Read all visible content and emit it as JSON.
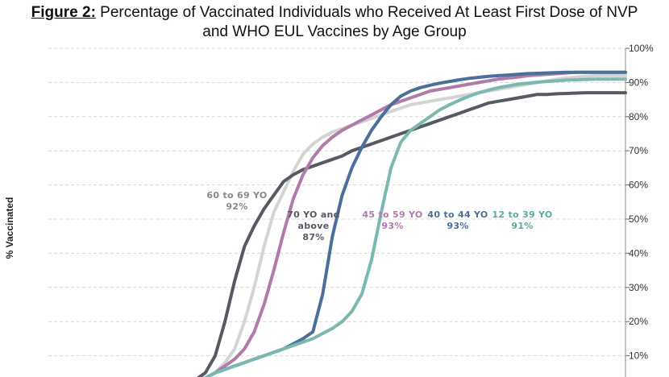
{
  "title_prefix": "Figure 2:",
  "title_line1": " Percentage of Vaccinated Individuals who Received At Least First Dose of NVP",
  "title_line2": "and WHO EUL Vaccines by Age Group",
  "chart_data": {
    "type": "line",
    "title": "Figure 2: Percentage of Vaccinated Individuals who Received At Least First Dose of NVP and WHO EUL Vaccines by Age Group",
    "ylabel": "% Vaccinated",
    "xlabel": "",
    "ylim": [
      0,
      100
    ],
    "yticks": [
      "10%",
      "20%",
      "30%",
      "40%",
      "50%",
      "60%",
      "70%",
      "80%",
      "90%",
      "100%"
    ],
    "ytick_values": [
      10,
      20,
      30,
      40,
      50,
      60,
      70,
      80,
      90,
      100
    ],
    "y_axis_side": "right",
    "grid": "horizontal dashed",
    "x": [
      0,
      2,
      4,
      6,
      8,
      10,
      12,
      14,
      16,
      18,
      20,
      22,
      24,
      26,
      28,
      30,
      32,
      34,
      36,
      38,
      40,
      42,
      44,
      46,
      48,
      50,
      52,
      54,
      56,
      58,
      60,
      62,
      64,
      66,
      68,
      70,
      72,
      74,
      76,
      78,
      80,
      82,
      84,
      86,
      88,
      90,
      92,
      94,
      96,
      98,
      100
    ],
    "series": [
      {
        "name": "60 to 69 YO",
        "final_label": "92%",
        "color": "#d4d4d4",
        "values": [
          0,
          0.5,
          1,
          1.3,
          1.6,
          2,
          2.5,
          3.5,
          5,
          8,
          12,
          20,
          30,
          42,
          52,
          58,
          64,
          69,
          72,
          74,
          75.5,
          76.5,
          77.5,
          78.5,
          79.5,
          80.5,
          81.5,
          82.5,
          83.5,
          84,
          84.5,
          85,
          85.5,
          86,
          86.5,
          87,
          87.5,
          88,
          88.5,
          89,
          89.5,
          90,
          90.5,
          91,
          91.3,
          91.6,
          91.8,
          92,
          92,
          92,
          92
        ]
      },
      {
        "name": "70 YO and above",
        "final_label": "87%",
        "color": "#555a63",
        "values": [
          0,
          0.5,
          1,
          1.3,
          1.6,
          2,
          3,
          5,
          10,
          20,
          32,
          42,
          48,
          53,
          57,
          61,
          63,
          64.5,
          65.5,
          66.5,
          67.5,
          68.5,
          70,
          71,
          72,
          73,
          74,
          75,
          76,
          77,
          78,
          79,
          80,
          81,
          82,
          83,
          84,
          84.5,
          85,
          85.5,
          86,
          86.5,
          86.5,
          86.7,
          86.8,
          86.9,
          87,
          87,
          87,
          87,
          87
        ]
      },
      {
        "name": "45 to 59 YO",
        "final_label": "93%",
        "color": "#b07aaa",
        "values": [
          0,
          0.5,
          1,
          1.3,
          1.6,
          2,
          2.5,
          3.5,
          5,
          7,
          9,
          12,
          17,
          25,
          35,
          46,
          56,
          63,
          68,
          71.5,
          74,
          76,
          77.5,
          79,
          80.5,
          82,
          83.5,
          84.5,
          85.5,
          86.5,
          87.5,
          88,
          88.5,
          89,
          89.5,
          90,
          90.5,
          91,
          91.3,
          91.6,
          92,
          92.2,
          92.4,
          92.6,
          92.8,
          93,
          93,
          93,
          93,
          93,
          93
        ]
      },
      {
        "name": "40 to 44 YO",
        "final_label": "93%",
        "color": "#4a6f9a",
        "values": [
          0,
          0.5,
          1,
          1.3,
          1.6,
          2,
          2.5,
          3.5,
          5,
          6,
          7,
          8,
          9,
          10,
          11,
          12,
          13.5,
          15,
          17,
          28,
          45,
          57,
          65,
          71,
          76,
          80,
          83.5,
          86,
          87.5,
          88.5,
          89.2,
          89.8,
          90.3,
          90.8,
          91.2,
          91.5,
          91.8,
          92,
          92.2,
          92.4,
          92.6,
          92.7,
          92.8,
          92.9,
          93,
          93,
          93,
          93,
          93,
          93,
          93
        ]
      },
      {
        "name": "12 to 39 YO",
        "final_label": "91%",
        "color": "#7ab8b0",
        "values": [
          0,
          0.5,
          1,
          1.3,
          1.6,
          2,
          2.5,
          3.5,
          5,
          6,
          7,
          8,
          9,
          10,
          11,
          12,
          13,
          14,
          15,
          16.5,
          18,
          20,
          23,
          28,
          38,
          52,
          65,
          72.5,
          76,
          78,
          80,
          82,
          83.5,
          84.8,
          86,
          87,
          87.8,
          88.5,
          89,
          89.5,
          89.8,
          90.1,
          90.3,
          90.5,
          90.7,
          90.8,
          90.9,
          91,
          91,
          91,
          91
        ]
      }
    ],
    "annotations": [
      {
        "series": "60 to 69 YO",
        "lines": [
          "60 to 69 YO",
          "92%"
        ]
      },
      {
        "series": "70 YO and above",
        "lines": [
          "70 YO and",
          "above",
          "87%"
        ]
      },
      {
        "series": "45 to 59 YO",
        "lines": [
          "45 to 59 YO",
          "93%"
        ]
      },
      {
        "series": "40 to 44 YO",
        "lines": [
          "40 to 44 YO",
          "93%"
        ]
      },
      {
        "series": "12 to 39 YO",
        "lines": [
          "12 to 39 YO",
          "91%"
        ]
      }
    ]
  }
}
